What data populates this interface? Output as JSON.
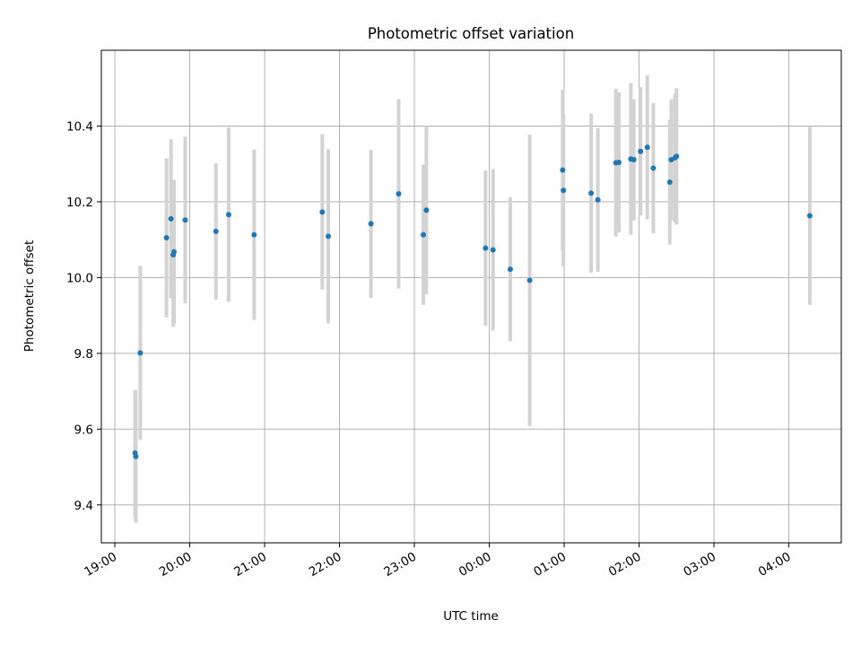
{
  "chart_data": {
    "type": "scatter",
    "title": "Photometric offset variation",
    "xlabel": "UTC time",
    "ylabel": "Photometric offset",
    "xlim_hours": [
      18.82,
      28.7
    ],
    "ylim": [
      9.3,
      10.6
    ],
    "x_ticks": [
      {
        "hours": 19,
        "label": "19:00"
      },
      {
        "hours": 20,
        "label": "20:00"
      },
      {
        "hours": 21,
        "label": "21:00"
      },
      {
        "hours": 22,
        "label": "22:00"
      },
      {
        "hours": 23,
        "label": "23:00"
      },
      {
        "hours": 24,
        "label": "00:00"
      },
      {
        "hours": 25,
        "label": "01:00"
      },
      {
        "hours": 26,
        "label": "02:00"
      },
      {
        "hours": 27,
        "label": "03:00"
      },
      {
        "hours": 28,
        "label": "04:00"
      }
    ],
    "y_ticks": [
      9.4,
      9.6,
      9.8,
      10.0,
      10.2,
      10.4
    ],
    "grid": true,
    "marker_color": "#1f77b4",
    "errorbar_color": "#d3d3d3",
    "points": [
      {
        "x": 19.27,
        "y": 9.537,
        "err": 0.165
      },
      {
        "x": 19.28,
        "y": 9.528,
        "err": 0.175
      },
      {
        "x": 19.34,
        "y": 9.801,
        "err": 0.23
      },
      {
        "x": 19.69,
        "y": 10.105,
        "err": 0.21
      },
      {
        "x": 19.75,
        "y": 10.155,
        "err": 0.21
      },
      {
        "x": 19.78,
        "y": 10.06,
        "err": 0.19
      },
      {
        "x": 19.79,
        "y": 10.068,
        "err": 0.19
      },
      {
        "x": 19.94,
        "y": 10.152,
        "err": 0.22
      },
      {
        "x": 20.35,
        "y": 10.122,
        "err": 0.18
      },
      {
        "x": 20.52,
        "y": 10.166,
        "err": 0.23
      },
      {
        "x": 20.86,
        "y": 10.113,
        "err": 0.225
      },
      {
        "x": 21.77,
        "y": 10.173,
        "err": 0.205
      },
      {
        "x": 21.85,
        "y": 10.109,
        "err": 0.23
      },
      {
        "x": 22.42,
        "y": 10.142,
        "err": 0.195
      },
      {
        "x": 22.79,
        "y": 10.221,
        "err": 0.25
      },
      {
        "x": 23.12,
        "y": 10.113,
        "err": 0.185
      },
      {
        "x": 23.16,
        "y": 10.178,
        "err": 0.222
      },
      {
        "x": 23.95,
        "y": 10.078,
        "err": 0.205
      },
      {
        "x": 24.05,
        "y": 10.073,
        "err": 0.213
      },
      {
        "x": 24.28,
        "y": 10.022,
        "err": 0.19
      },
      {
        "x": 24.54,
        "y": 9.993,
        "err": 0.385
      },
      {
        "x": 24.98,
        "y": 10.284,
        "err": 0.212
      },
      {
        "x": 24.99,
        "y": 10.23,
        "err": 0.2
      },
      {
        "x": 25.36,
        "y": 10.223,
        "err": 0.21
      },
      {
        "x": 25.45,
        "y": 10.205,
        "err": 0.19
      },
      {
        "x": 25.69,
        "y": 10.303,
        "err": 0.195
      },
      {
        "x": 25.73,
        "y": 10.304,
        "err": 0.185
      },
      {
        "x": 25.89,
        "y": 10.313,
        "err": 0.2
      },
      {
        "x": 25.93,
        "y": 10.311,
        "err": 0.16
      },
      {
        "x": 26.02,
        "y": 10.333,
        "err": 0.17
      },
      {
        "x": 26.11,
        "y": 10.344,
        "err": 0.19
      },
      {
        "x": 26.19,
        "y": 10.289,
        "err": 0.172
      },
      {
        "x": 26.41,
        "y": 10.252,
        "err": 0.165
      },
      {
        "x": 26.43,
        "y": 10.311,
        "err": 0.16
      },
      {
        "x": 26.48,
        "y": 10.316,
        "err": 0.17
      },
      {
        "x": 26.5,
        "y": 10.32,
        "err": 0.18
      },
      {
        "x": 28.28,
        "y": 10.163,
        "err": 0.235
      }
    ]
  }
}
